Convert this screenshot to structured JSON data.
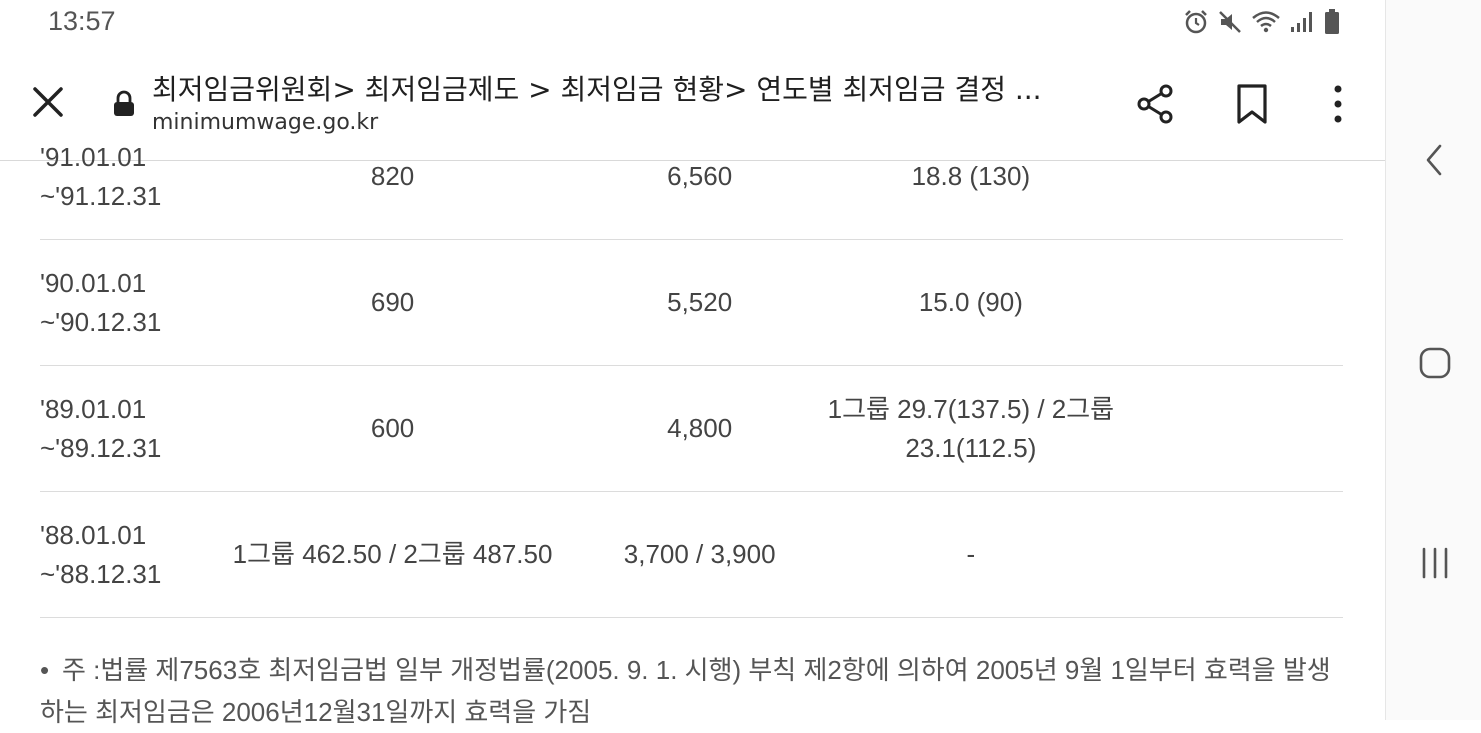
{
  "status_bar": {
    "time": "13:57",
    "icons": [
      "alarm-icon",
      "mute-icon",
      "wifi-icon",
      "signal-icon",
      "battery-icon"
    ]
  },
  "toolbar": {
    "title": "최저임금위원회> 최저임금제도 > 최저임금 현황> 연도별 최저임금 결정 ...",
    "url": "minimumwage.go.kr",
    "icons": [
      "close-icon",
      "lock-icon",
      "share-icon",
      "bookmark-icon",
      "more-vert-icon"
    ]
  },
  "table": {
    "rows": [
      {
        "period_start": "'91.01.01",
        "period_end": "~'91.12.31",
        "hourly": "820",
        "daily": "6,560",
        "rate": "18.8 (130)"
      },
      {
        "period_start": "'90.01.01",
        "period_end": "~'90.12.31",
        "hourly": "690",
        "daily": "5,520",
        "rate": "15.0 (90)"
      },
      {
        "period_start": "'89.01.01",
        "period_end": "~'89.12.31",
        "hourly": "600",
        "daily": "4,800",
        "rate": "1그룹 29.7(137.5) / 2그룹 23.1(112.5)"
      },
      {
        "period_start": "'88.01.01",
        "period_end": "~'88.12.31",
        "hourly": "1그룹 462.50 / 2그룹 487.50",
        "daily": "3,700 / 3,900",
        "rate": "-"
      }
    ]
  },
  "note": {
    "bullet": "•",
    "text": "주 :법률 제7563호 최저임금법 일부 개정법률(2005. 9. 1. 시행) 부칙 제2항에 의하여 2005년 9월 1일부터 효력을 발생하는 최저임금은 2006년12월31일까지 효력을 가짐"
  },
  "nav_bar": {
    "icons": [
      "back-icon",
      "home-icon",
      "recent-apps-icon"
    ]
  }
}
